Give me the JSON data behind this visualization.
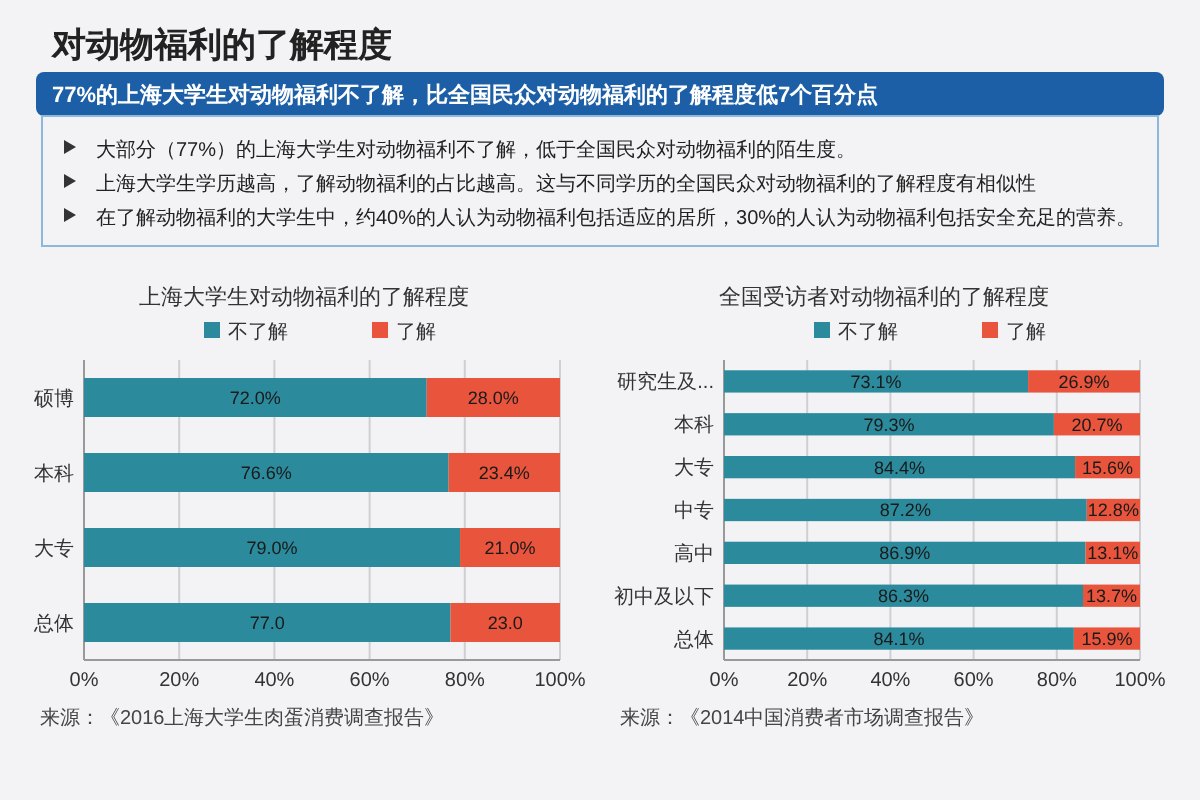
{
  "chart_data": [
    {
      "type": "other",
      "title": "对动物福利的了解程度",
      "subtitle": "77%的上海大学生对动物福利不了解，比全国民众对动物福利的了解程度低7个百分点",
      "annotations": [
        "大部分（77%）的上海大学生对动物福利不了解，低于全国民众对动物福利的陌生度。",
        "上海大学生学历越高，了解动物福利的占比越高。这与不同学历的全国民众对动物福利的了解程度有相似性",
        "在了解动物福利的大学生中，约40%的人认为动物福利包括适应的居所，30%的人认为动物福利包括安全充足的营养。"
      ]
    },
    {
      "type": "bar",
      "orientation": "horizontal",
      "stacked": true,
      "title": "上海大学生对动物福利的了解程度",
      "categories": [
        "硕博",
        "本科",
        "大专",
        "总体"
      ],
      "series": [
        {
          "name": "不了解",
          "color": "#2b8a9c",
          "values": [
            72.0,
            76.6,
            79.0,
            77.0
          ],
          "value_labels": [
            "72.0%",
            "76.6%",
            "79.0%",
            "77.0"
          ]
        },
        {
          "name": "了解",
          "color": "#e8543c",
          "values": [
            28.0,
            23.4,
            21.0,
            23.0
          ],
          "value_labels": [
            "28.0%",
            "23.4%",
            "21.0%",
            "23.0"
          ]
        }
      ],
      "xlim": [
        0,
        100
      ],
      "xticks": [
        {
          "value": 0,
          "label": "0%"
        },
        {
          "value": 20,
          "label": "20%"
        },
        {
          "value": 40,
          "label": "40%"
        },
        {
          "value": 60,
          "label": "60%"
        },
        {
          "value": 80,
          "label": "80%"
        },
        {
          "value": 100,
          "label": "100%"
        }
      ],
      "grid": "x",
      "legend": "top",
      "annotations": [
        "来源：《2016上海大学生肉蛋消费调查报告》"
      ]
    },
    {
      "type": "bar",
      "orientation": "horizontal",
      "stacked": true,
      "title": "全国受访者对动物福利的了解程度",
      "categories": [
        "研究生及...",
        "本科",
        "大专",
        "中专",
        "高中",
        "初中及以下",
        "总体"
      ],
      "series": [
        {
          "name": "不了解",
          "color": "#2b8a9c",
          "values": [
            73.1,
            79.3,
            84.4,
            87.2,
            86.9,
            86.3,
            84.1
          ],
          "value_labels": [
            "73.1%",
            "79.3%",
            "84.4%",
            "87.2%",
            "86.9%",
            "86.3%",
            "84.1%"
          ]
        },
        {
          "name": "了解",
          "color": "#e8543c",
          "values": [
            26.9,
            20.7,
            15.6,
            12.8,
            13.1,
            13.7,
            15.9
          ],
          "value_labels": [
            "26.9%",
            "20.7%",
            "15.6%",
            "12.8%",
            "13.1%",
            "13.7%",
            "15.9%"
          ]
        }
      ],
      "xlim": [
        0,
        100
      ],
      "xticks": [
        {
          "value": 0,
          "label": "0%"
        },
        {
          "value": 20,
          "label": "20%"
        },
        {
          "value": 40,
          "label": "40%"
        },
        {
          "value": 60,
          "label": "60%"
        },
        {
          "value": 80,
          "label": "80%"
        },
        {
          "value": 100,
          "label": "100%"
        }
      ],
      "grid": "x",
      "legend": "top",
      "annotations": [
        "来源：《2014中国消费者市场调查报告》"
      ]
    }
  ]
}
